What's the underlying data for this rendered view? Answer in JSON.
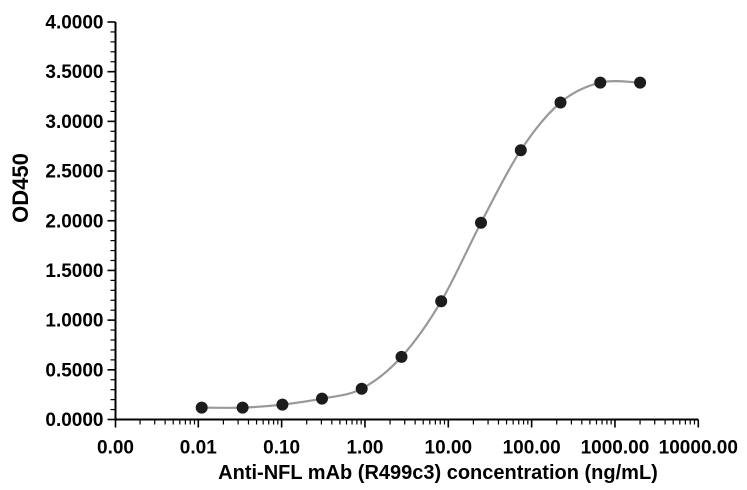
{
  "chart_data": {
    "type": "line",
    "title": "",
    "xlabel": "Anti-NFL mAb (R499c3) concentration (ng/mL)",
    "ylabel": "OD450",
    "x_scale": "log",
    "x_tick_values": [
      0,
      0.01,
      0.1,
      1,
      10,
      100,
      1000,
      10000
    ],
    "x_tick_labels": [
      "0.00",
      "0.01",
      "0.10",
      "1.00",
      "10.00",
      "100.00",
      "1000.00",
      "10000.00"
    ],
    "y_tick_values": [
      0,
      0.5,
      1.0,
      1.5,
      2.0,
      2.5,
      3.0,
      3.5,
      4.0
    ],
    "y_tick_labels": [
      "0.0000",
      "0.5000",
      "1.0000",
      "1.5000",
      "2.0000",
      "2.5000",
      "3.0000",
      "3.5000",
      "4.0000"
    ],
    "ylim": [
      0,
      4
    ],
    "xlim_log": [
      0.01,
      10000
    ],
    "grid": false,
    "legend": false,
    "series": [
      {
        "name": "Anti-NFL mAb (R499c3)",
        "x": [
          0.011,
          0.034,
          0.102,
          0.305,
          0.914,
          2.743,
          8.23,
          24.69,
          74.07,
          222.2,
          666.7,
          2000
        ],
        "y": [
          0.12,
          0.12,
          0.15,
          0.21,
          0.31,
          0.63,
          1.19,
          1.98,
          2.71,
          3.19,
          3.39,
          3.39
        ]
      }
    ],
    "colors": {
      "marker": "#1c1c1c",
      "line": "#999999",
      "axis": "#000000"
    }
  }
}
